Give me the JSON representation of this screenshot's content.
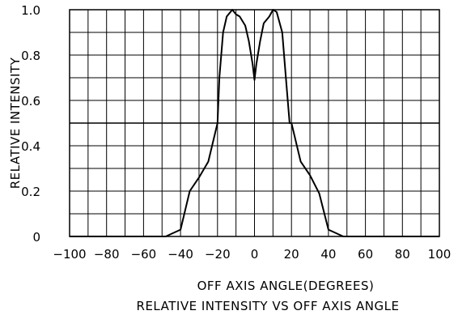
{
  "chart_data": {
    "type": "line",
    "title": "RELATIVE INTENSITY VS OFF AXIS ANGLE",
    "xlabel": "OFF AXIS ANGLE(DEGREES)",
    "ylabel": "RELATIVE INTENSITY",
    "xlim": [
      -100,
      100
    ],
    "ylim": [
      0,
      1.0
    ],
    "x_ticks": [
      -100,
      -80,
      -60,
      -40,
      -20,
      0,
      20,
      40,
      60,
      80,
      100
    ],
    "x_tick_labels": [
      "−100",
      "−80",
      "−60",
      "−40",
      "−20",
      "0",
      "20",
      "40",
      "60",
      "80",
      "100"
    ],
    "y_ticks": [
      0,
      0.2,
      0.4,
      0.6,
      0.8,
      1.0
    ],
    "y_tick_labels": [
      "0",
      "0.2",
      "0.4",
      "0.6",
      "0.8",
      "1.0"
    ],
    "grid": true,
    "reference_line_y": 0.5,
    "series": [
      {
        "x": [
          -100,
          -48,
          -40,
          -35,
          -30,
          -25,
          -20,
          -19,
          -17,
          -15,
          -12,
          -10,
          -8,
          -5,
          -3,
          -1,
          0,
          1,
          3,
          5,
          8,
          10,
          12,
          15,
          17,
          19,
          20,
          25,
          30,
          35,
          40,
          48,
          100
        ],
        "y": [
          0,
          0,
          0.03,
          0.2,
          0.26,
          0.33,
          0.5,
          0.7,
          0.9,
          0.97,
          1.0,
          0.98,
          0.97,
          0.93,
          0.86,
          0.76,
          0.69,
          0.76,
          0.86,
          0.94,
          0.97,
          1.0,
          0.99,
          0.9,
          0.7,
          0.5,
          0.5,
          0.33,
          0.27,
          0.19,
          0.03,
          0,
          0
        ]
      }
    ]
  }
}
